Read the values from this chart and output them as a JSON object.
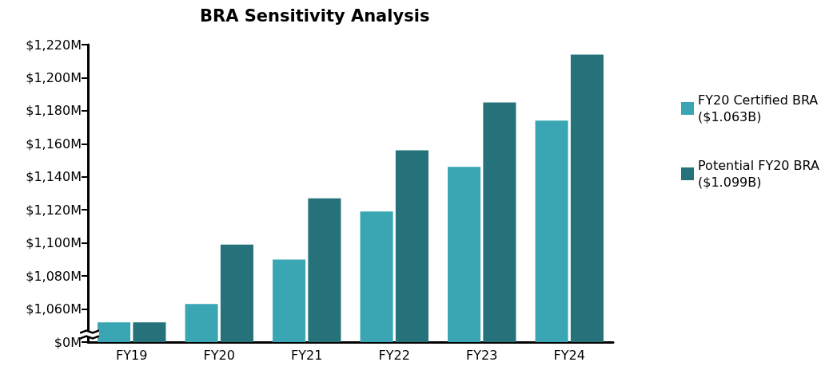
{
  "chart_data": {
    "type": "bar",
    "title": "BRA Sensitivity Analysis",
    "categories": [
      "FY19",
      "FY20",
      "FY21",
      "FY22",
      "FY23",
      "FY24"
    ],
    "series": [
      {
        "name": "FY20 Certified BRA\n($1.063B)",
        "color": "#3aa6b4",
        "values": [
          1052,
          1063,
          1090,
          1119,
          1146,
          1174
        ]
      },
      {
        "name": "Potential FY20 BRA\n($1.099B)",
        "color": "#26727a",
        "values": [
          1052,
          1099,
          1127,
          1156,
          1185,
          1214
        ]
      }
    ],
    "ylim": [
      1040,
      1220
    ],
    "yticks": [
      {
        "value": 1040,
        "label": "$0M"
      },
      {
        "value": 1060,
        "label": "$1,060M"
      },
      {
        "value": 1080,
        "label": "$1,080M"
      },
      {
        "value": 1100,
        "label": "$1,100M"
      },
      {
        "value": 1120,
        "label": "$1,120M"
      },
      {
        "value": 1140,
        "label": "$1,140M"
      },
      {
        "value": 1160,
        "label": "$1,160M"
      },
      {
        "value": 1180,
        "label": "$1,180M"
      },
      {
        "value": 1200,
        "label": "$1,200M"
      },
      {
        "value": 1220,
        "label": "$1,220M"
      }
    ],
    "grid": false,
    "legend": "right"
  }
}
